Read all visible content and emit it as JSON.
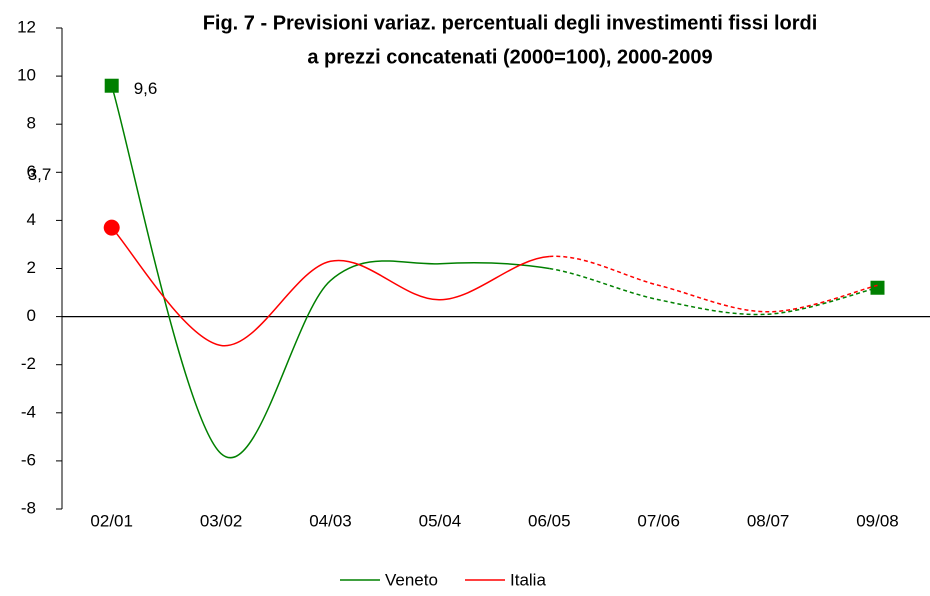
{
  "chart_data": {
    "type": "line",
    "title": [
      "Fig.  7 - Previsioni variaz. percentuali degli investimenti fissi lordi",
      "a prezzi concatenati (2000=100), 2000-2009"
    ],
    "categories": [
      "02/01",
      "03/02",
      "04/03",
      "05/04",
      "06/05",
      "07/06",
      "08/07",
      "09/08"
    ],
    "series": [
      {
        "name": "Veneto",
        "color": "#008000",
        "marker": "square",
        "marker_points": [
          0,
          7
        ],
        "values": [
          9.6,
          -5.7,
          1.5,
          2.2,
          2.0,
          0.7,
          0.1,
          1.2
        ],
        "value_labels": [
          "9,6",
          null,
          null,
          null,
          null,
          null,
          null,
          null
        ]
      },
      {
        "name": "Italia",
        "color": "#ff0000",
        "marker": "circle",
        "marker_points": [
          0
        ],
        "values": [
          3.7,
          -1.2,
          2.3,
          0.7,
          2.5,
          1.3,
          0.2,
          1.3
        ],
        "value_labels": [
          "3,7",
          null,
          null,
          null,
          null,
          null,
          null,
          null
        ]
      }
    ],
    "dashed_from_category": "06/05",
    "ylim": [
      -8,
      12
    ],
    "yticks": [
      -8,
      -6,
      -4,
      -2,
      0,
      2,
      4,
      6,
      8,
      10,
      12
    ],
    "grid": false,
    "legend": "bottom"
  }
}
